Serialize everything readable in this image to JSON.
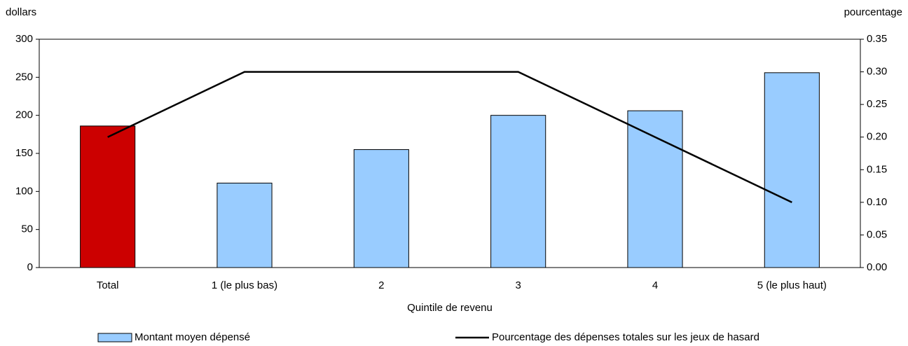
{
  "chart_data": {
    "type": "bar",
    "ylabel": "dollars",
    "y2label": "pourcentage",
    "xlabel": "Quintile de revenu",
    "categories": [
      "Total",
      "1 (le plus bas)",
      "2",
      "3",
      "4",
      "5 (le plus haut)"
    ],
    "series": [
      {
        "name": "Montant moyen dépensé",
        "type": "bar",
        "color": "#99ccff",
        "colors": [
          "#cc0000",
          "#99ccff",
          "#99ccff",
          "#99ccff",
          "#99ccff",
          "#99ccff"
        ],
        "values": [
          186,
          111,
          155,
          200,
          206,
          256
        ]
      },
      {
        "name": "Pourcentage des dépenses totales sur les jeux de hasard",
        "type": "line",
        "axis": "y2",
        "color": "#000000",
        "values": [
          0.2,
          0.3,
          0.3,
          0.3,
          0.2,
          0.1
        ]
      }
    ],
    "ylim": [
      0,
      300
    ],
    "yticks": [
      0,
      50,
      100,
      150,
      200,
      250,
      300
    ],
    "y2lim": [
      0,
      0.35
    ],
    "y2ticks": [
      {
        "value": 0,
        "label": "0.00"
      },
      0.05,
      {
        "value": 0.1,
        "label": "0.10"
      },
      0.15,
      {
        "value": 0.2,
        "label": "0.20"
      },
      0.25,
      {
        "value": 0.3,
        "label": "0.30"
      },
      0.35
    ],
    "legend": "bottom"
  }
}
